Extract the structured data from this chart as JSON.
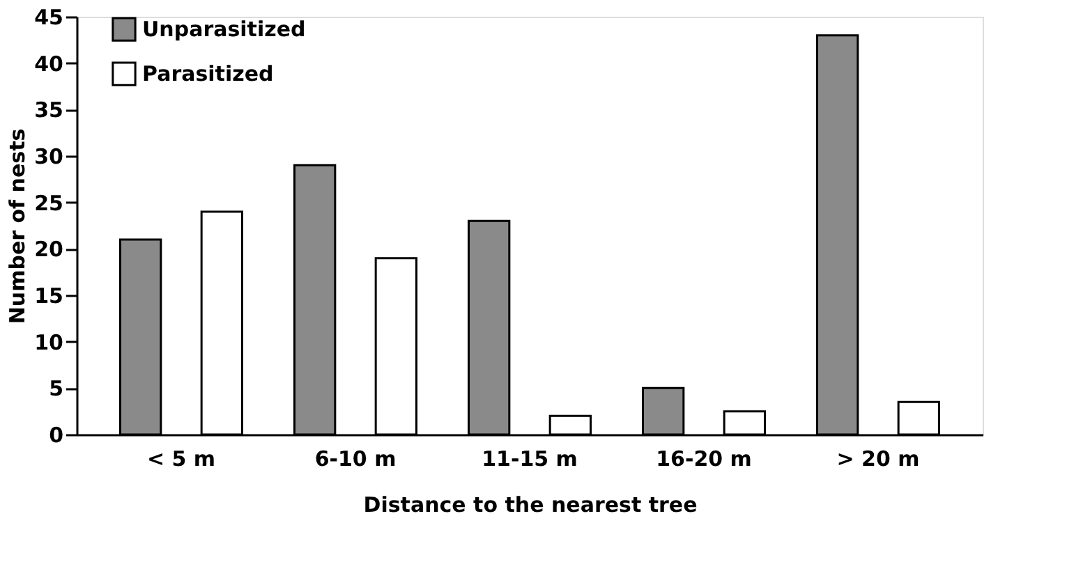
{
  "chart_data": {
    "type": "bar",
    "xlabel": "Distance to the nearest tree",
    "ylabel": "Number of nests",
    "categories": [
      "< 5 m",
      "6-10 m",
      "11-15 m",
      "16-20 m",
      "> 20 m"
    ],
    "series": [
      {
        "name": "Unparasitized",
        "color": "#8a8a8a",
        "values": [
          21,
          29,
          23,
          5,
          43
        ]
      },
      {
        "name": "Parasitized",
        "color": "#ffffff",
        "values": [
          24,
          19,
          2,
          2.5,
          3.5
        ]
      }
    ],
    "ylim": [
      0,
      45
    ],
    "yticks": [
      0,
      5,
      10,
      15,
      20,
      25,
      30,
      35,
      40,
      45
    ],
    "grid": false,
    "legend": "top left"
  }
}
